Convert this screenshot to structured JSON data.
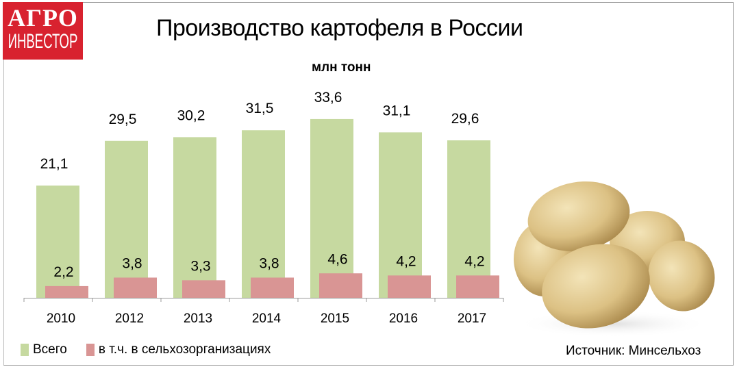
{
  "logo": {
    "line1": "АГРО",
    "line2": "ИНВЕСТОР"
  },
  "title": "Производство картофеля в России",
  "unit": "млн тонн",
  "source": "Источник: Минсельхоз",
  "colors": {
    "total": "#c6d9a0",
    "agri": "#d99594",
    "logo": "#d8222f"
  },
  "chart_data": {
    "type": "bar",
    "title": "Производство картофеля в России",
    "ylabel": "млн тонн",
    "categories": [
      "2010",
      "2012",
      "2013",
      "2014",
      "2015",
      "2016",
      "2017"
    ],
    "series": [
      {
        "name": "Всего",
        "values": [
          21.1,
          29.5,
          30.2,
          31.5,
          33.6,
          31.1,
          29.6
        ],
        "labels": [
          "21,1",
          "29,5",
          "30,2",
          "31,5",
          "33,6",
          "31,1",
          "29,6"
        ]
      },
      {
        "name": "в т.ч. в сельхозорганизациях",
        "values": [
          2.2,
          3.8,
          3.3,
          3.8,
          4.6,
          4.2,
          4.2
        ],
        "labels": [
          "2,2",
          "3,8",
          "3,3",
          "3,8",
          "4,6",
          "4,2",
          "4,2"
        ]
      }
    ],
    "ylim": [
      0,
      36
    ],
    "grid": false,
    "legend": "bottom-left"
  }
}
